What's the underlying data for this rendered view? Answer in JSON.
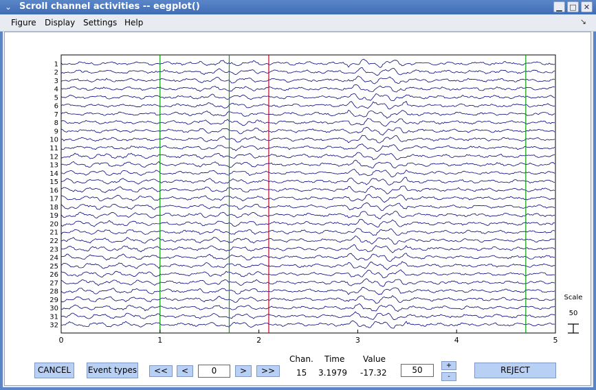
{
  "window": {
    "title": "Scroll channel activities -- eegplot()",
    "controls": [
      "minimize-icon",
      "maximize-icon",
      "close-icon"
    ]
  },
  "menubar": {
    "items": [
      "Figure",
      "Display",
      "Settings",
      "Help"
    ],
    "dock_icon": "dock-arrow-icon"
  },
  "chart_data": {
    "type": "line",
    "title": "",
    "xlabel": "",
    "ylabel": "",
    "xlim": [
      0,
      5
    ],
    "x_ticks": [
      "0",
      "1",
      "2",
      "3",
      "4",
      "5"
    ],
    "channels": [
      "1",
      "2",
      "3",
      "4",
      "5",
      "6",
      "7",
      "8",
      "9",
      "10",
      "11",
      "12",
      "13",
      "14",
      "15",
      "16",
      "17",
      "18",
      "19",
      "20",
      "21",
      "22",
      "23",
      "24",
      "25",
      "26",
      "27",
      "28",
      "29",
      "30",
      "31",
      "32"
    ],
    "event_markers": [
      {
        "x": 1.0,
        "color": "#00a000"
      },
      {
        "x": 1.7,
        "color": "#00a000"
      },
      {
        "x": 2.1,
        "color": "#c00020"
      },
      {
        "x": 4.7,
        "color": "#00a000"
      }
    ],
    "trace_color": "#00007a",
    "scale_label": "Scale",
    "scale_value": "50"
  },
  "controls": {
    "cancel": "CANCEL",
    "event_types": "Event types",
    "prev_page": "<<",
    "prev": "<",
    "position": "0",
    "next": ">",
    "next_page": ">>",
    "chan_label": "Chan.",
    "time_label": "Time",
    "value_label": "Value",
    "chan_value": "15",
    "time_value": "3.1979",
    "value_value": "-17.32",
    "scale_field": "50",
    "plus": "+",
    "minus": "-",
    "reject": "REJECT"
  }
}
